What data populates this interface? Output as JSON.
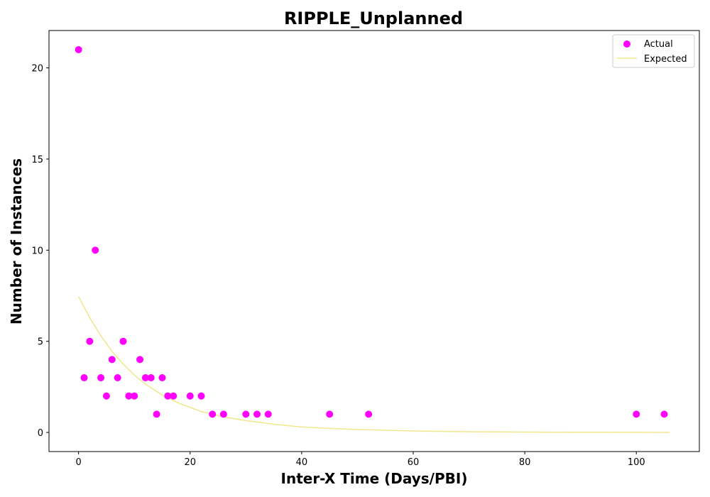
{
  "chart_data": {
    "type": "scatter",
    "title": "RIPPLE_Unplanned",
    "xlabel": "Inter-X Time (Days/PBI)",
    "ylabel": "Number of Instances",
    "xlim": [
      -5.3,
      111.3
    ],
    "ylim": [
      -1.05,
      22.05
    ],
    "xticks": [
      0,
      20,
      40,
      60,
      80,
      100
    ],
    "yticks": [
      0,
      5,
      10,
      15,
      20
    ],
    "grid": false,
    "legend_position": "top-right",
    "series": [
      {
        "name": "Actual",
        "kind": "scatter",
        "color": "#ff00ff",
        "points": [
          [
            0,
            21
          ],
          [
            1,
            3
          ],
          [
            2,
            5
          ],
          [
            3,
            10
          ],
          [
            4,
            3
          ],
          [
            5,
            2
          ],
          [
            6,
            4
          ],
          [
            7,
            3
          ],
          [
            8,
            5
          ],
          [
            9,
            2
          ],
          [
            10,
            2
          ],
          [
            11,
            4
          ],
          [
            12,
            3
          ],
          [
            13,
            3
          ],
          [
            14,
            1
          ],
          [
            15,
            3
          ],
          [
            16,
            2
          ],
          [
            17,
            2
          ],
          [
            20,
            2
          ],
          [
            22,
            2
          ],
          [
            24,
            1
          ],
          [
            26,
            1
          ],
          [
            30,
            1
          ],
          [
            32,
            1
          ],
          [
            34,
            1
          ],
          [
            45,
            1
          ],
          [
            52,
            1
          ],
          [
            100,
            1
          ],
          [
            105,
            1
          ]
        ]
      },
      {
        "name": "Expected",
        "kind": "line",
        "color": "#f0e68c",
        "points": [
          [
            0,
            7.45
          ],
          [
            2,
            6.3
          ],
          [
            4,
            5.3
          ],
          [
            6,
            4.45
          ],
          [
            8,
            3.75
          ],
          [
            10,
            3.15
          ],
          [
            12,
            2.65
          ],
          [
            15,
            2.05
          ],
          [
            18,
            1.6
          ],
          [
            22,
            1.15
          ],
          [
            26,
            0.85
          ],
          [
            30,
            0.65
          ],
          [
            35,
            0.45
          ],
          [
            40,
            0.3
          ],
          [
            45,
            0.22
          ],
          [
            50,
            0.16
          ],
          [
            55,
            0.12
          ],
          [
            60,
            0.08
          ],
          [
            70,
            0.04
          ],
          [
            80,
            0.02
          ],
          [
            90,
            0.01
          ],
          [
            100,
            0.005
          ],
          [
            106,
            0.003
          ]
        ]
      }
    ]
  }
}
